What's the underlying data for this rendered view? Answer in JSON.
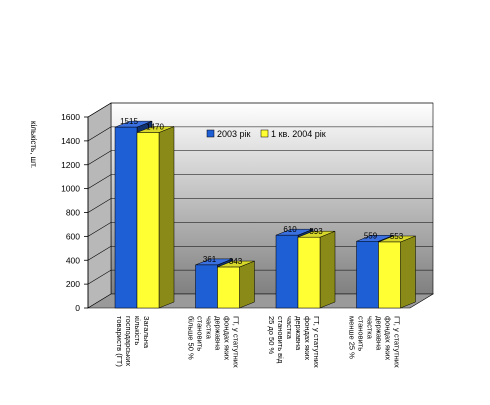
{
  "chart_data": {
    "type": "bar",
    "ylabel": "кількість, шт.",
    "ylim": [
      0,
      1600
    ],
    "yticks": [
      0,
      200,
      400,
      600,
      800,
      1000,
      1200,
      1400,
      1600
    ],
    "grid": true,
    "legend_position": "top-right",
    "categories": [
      [
        "Загальна",
        "кількість",
        "господарських",
        "товариств (ГТ)"
      ],
      [
        "ГТ, у статутних",
        "фондах яких",
        "державна",
        "частка",
        "становить",
        "більше 50 %"
      ],
      [
        "ГТ, у статутних",
        "фондах яких",
        "державна",
        "частка",
        "становить від",
        "25 до 50 %"
      ],
      [
        "ГТ, у статутних",
        "фондах яких",
        "державна",
        "частка",
        "становить",
        "менше 25 %"
      ]
    ],
    "series": [
      {
        "name": "2003 рік",
        "values": [
          1515,
          361,
          610,
          559
        ],
        "labels": [
          "1515",
          "361",
          "610",
          "559"
        ],
        "color": "#1f5fd6"
      },
      {
        "name": "1 кв. 2004 рік",
        "values": [
          1470,
          343,
          593,
          553
        ],
        "labels": [
          "1470",
          "343",
          "593",
          "553"
        ],
        "color": "#ffff33"
      }
    ],
    "colors": {
      "wall_light": "#ffffff",
      "wall_dark": "#808080",
      "floor": "#9a9a9a",
      "blue_side": "#10306e",
      "blue_top": "#3a70e0",
      "yellow_side": "#8a8a18",
      "yellow_top": "#d8d82a"
    }
  }
}
